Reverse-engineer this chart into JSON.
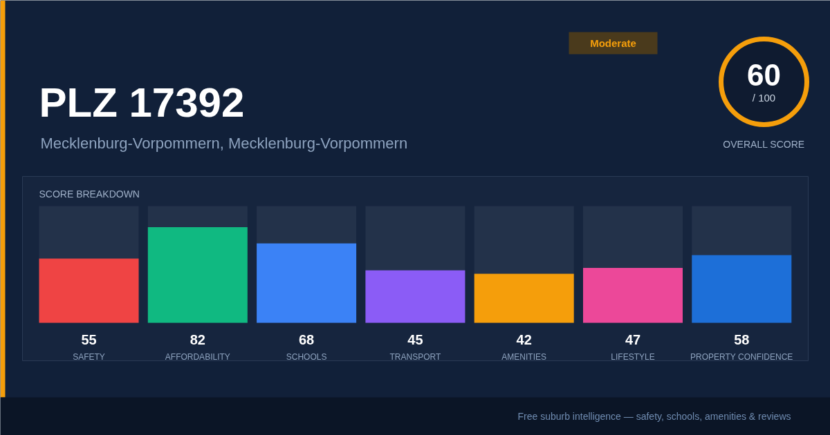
{
  "chart_data": {
    "type": "bar",
    "title": "PLZ 17392",
    "subtitle": "Mecklenburg-Vorpommern, Mecklenburg-Vorpommern",
    "xlabel": "SCORE BREAKDOWN",
    "categories": [
      "SAFETY",
      "AFFORDABILITY",
      "SCHOOLS",
      "TRANSPORT",
      "AMENITIES",
      "LIFESTYLE",
      "PROPERTY CONFIDENCE"
    ],
    "values": [
      55,
      82,
      68,
      45,
      42,
      47,
      58
    ],
    "colors": [
      "#ef4444",
      "#10b981",
      "#3b82f6",
      "#8b5cf6",
      "#f59e0b",
      "#ec4899",
      "#1d6fd8"
    ],
    "ylim": [
      0,
      100
    ],
    "data_labels": true,
    "annotations": [
      "Moderate",
      "60",
      "/ 100",
      "OVERALL SCORE",
      "Free suburb intelligence — safety, schools, amenities & reviews"
    ]
  }
}
